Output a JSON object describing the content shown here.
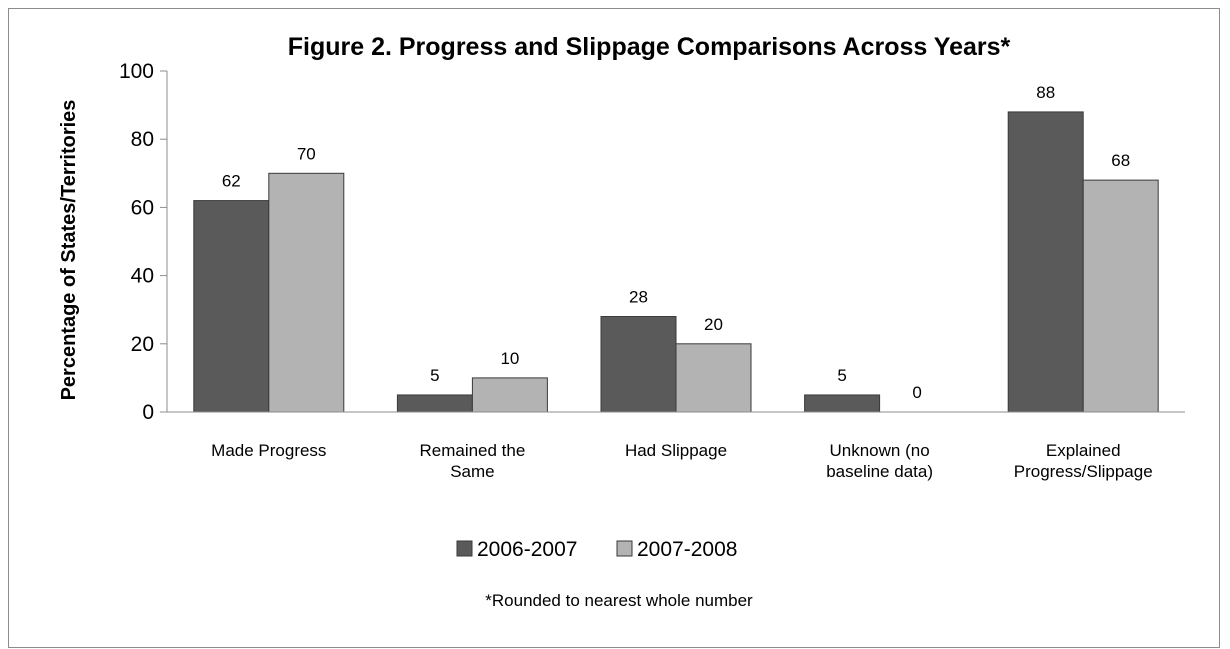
{
  "chart_data": {
    "type": "bar",
    "title": "Figure 2. Progress and Slippage Comparisons Across Years*",
    "ylabel": "Percentage of States/Territories",
    "xlabel": "",
    "ylim": [
      0,
      100
    ],
    "yticks": [
      "0",
      "20",
      "40",
      "60",
      "80",
      "100"
    ],
    "grid": false,
    "legend_placement": "bottom",
    "categories": [
      [
        "Made Progress"
      ],
      [
        "Remained the",
        "Same"
      ],
      [
        "Had Slippage"
      ],
      [
        "Unknown (no",
        "baseline data)"
      ],
      [
        "Explained",
        "Progress/Slippage"
      ]
    ],
    "series": [
      {
        "name": "2006-2007",
        "color": "#5a5a5a",
        "values": [
          62,
          5,
          28,
          5,
          88
        ]
      },
      {
        "name": "2007-2008",
        "color": "#b3b3b3",
        "values": [
          70,
          10,
          20,
          0,
          68
        ]
      }
    ],
    "footnote": "*Rounded to nearest whole number"
  }
}
